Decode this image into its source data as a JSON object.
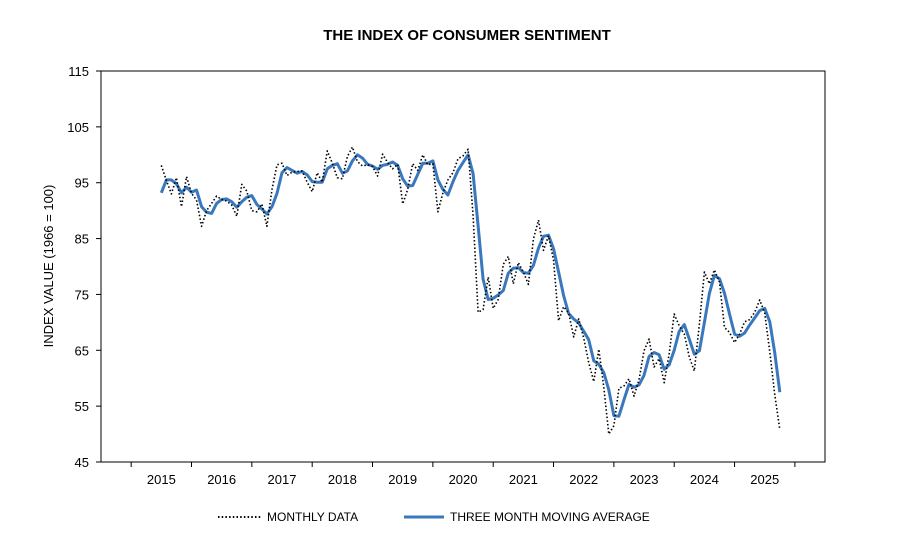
{
  "chart_data": {
    "type": "line",
    "title": "THE INDEX OF CONSUMER SENTIMENT",
    "xlabel": "",
    "ylabel": "INDEX VALUE (1966 = 100)",
    "ylim": [
      45,
      115
    ],
    "yticks": [
      45,
      55,
      65,
      75,
      85,
      95,
      105,
      115
    ],
    "xlim": [
      2014.0,
      2025.999
    ],
    "xticks": [
      2015,
      2016,
      2017,
      2018,
      2019,
      2020,
      2021,
      2022,
      2023,
      2024,
      2025
    ],
    "xtick_labels": [
      "2015",
      "2016",
      "2017",
      "2018",
      "2019",
      "2020",
      "2021",
      "2022",
      "2023",
      "2024",
      "2025"
    ],
    "start": {
      "year": 2015,
      "month": 1
    },
    "grid": false,
    "legend_position": "bottom",
    "series": [
      {
        "name": "MONTHLY DATA",
        "style": "dotted",
        "color": "#000000",
        "values": [
          98.1,
          95.4,
          93.0,
          95.9,
          90.7,
          96.1,
          93.1,
          91.9,
          87.2,
          90.0,
          91.3,
          92.6,
          92.0,
          91.7,
          91.0,
          89.0,
          94.7,
          93.5,
          90.0,
          89.8,
          91.2,
          87.2,
          93.8,
          98.2,
          98.5,
          96.3,
          96.9,
          97.0,
          97.1,
          95.1,
          93.4,
          96.8,
          95.1,
          100.7,
          98.5,
          95.9,
          95.7,
          99.7,
          101.4,
          98.8,
          98.0,
          98.2,
          97.9,
          96.2,
          100.1,
          98.6,
          97.5,
          98.3,
          91.2,
          93.8,
          98.4,
          97.2,
          100.0,
          98.2,
          98.4,
          89.8,
          93.2,
          95.5,
          96.8,
          99.3,
          99.8,
          101.0,
          89.1,
          71.8,
          72.3,
          78.1,
          72.5,
          74.1,
          80.4,
          81.8,
          76.9,
          80.7,
          79.0,
          76.8,
          84.9,
          88.3,
          82.9,
          85.5,
          81.2,
          70.3,
          72.8,
          71.7,
          67.4,
          70.6,
          67.2,
          62.8,
          59.4,
          65.2,
          58.4,
          50.0,
          51.5,
          58.2,
          58.6,
          59.9,
          56.8,
          59.7,
          64.9,
          67.0,
          62.0,
          63.5,
          59.2,
          64.4,
          71.5,
          69.4,
          67.9,
          63.8,
          61.3,
          69.7,
          79.0,
          76.9,
          79.4,
          77.2,
          69.1,
          68.2,
          66.4,
          67.9,
          70.1,
          70.5,
          71.8,
          74.0,
          71.7,
          64.7,
          57.0,
          50.8
        ]
      },
      {
        "name": "THREE MONTH MOVING AVERAGE",
        "style": "solid",
        "color": "#3a78bd",
        "values": [
          93.2,
          95.5,
          95.5,
          94.8,
          93.2,
          94.2,
          93.3,
          93.7,
          90.7,
          89.7,
          89.5,
          91.3,
          92.0,
          92.1,
          91.6,
          90.6,
          91.6,
          92.4,
          92.7,
          91.1,
          90.3,
          89.4,
          90.7,
          93.1,
          96.8,
          97.7,
          97.2,
          96.7,
          97.0,
          96.4,
          95.2,
          95.1,
          95.1,
          97.5,
          98.1,
          98.4,
          96.7,
          97.1,
          98.9,
          100.0,
          99.4,
          98.3,
          98.0,
          97.4,
          98.1,
          98.3,
          98.7,
          98.1,
          95.7,
          94.4,
          94.5,
          96.5,
          98.5,
          98.5,
          98.9,
          95.5,
          93.8,
          92.8,
          95.2,
          97.2,
          98.6,
          100.0,
          96.6,
          87.3,
          77.7,
          74.1,
          74.3,
          74.9,
          75.7,
          78.8,
          79.7,
          79.8,
          78.9,
          78.8,
          80.2,
          83.3,
          85.4,
          85.6,
          83.2,
          79.0,
          74.8,
          71.6,
          70.6,
          69.9,
          68.4,
          66.9,
          63.1,
          62.5,
          61.0,
          57.9,
          53.3,
          53.2,
          56.1,
          58.9,
          58.4,
          58.8,
          60.5,
          63.9,
          64.6,
          64.2,
          61.6,
          62.4,
          65.0,
          68.4,
          69.6,
          67.0,
          64.3,
          64.9,
          70.0,
          75.2,
          78.4,
          77.8,
          75.2,
          71.5,
          67.9,
          67.5,
          68.1,
          69.5,
          70.8,
          72.1,
          72.5,
          70.1,
          64.5,
          57.5
        ]
      }
    ]
  }
}
